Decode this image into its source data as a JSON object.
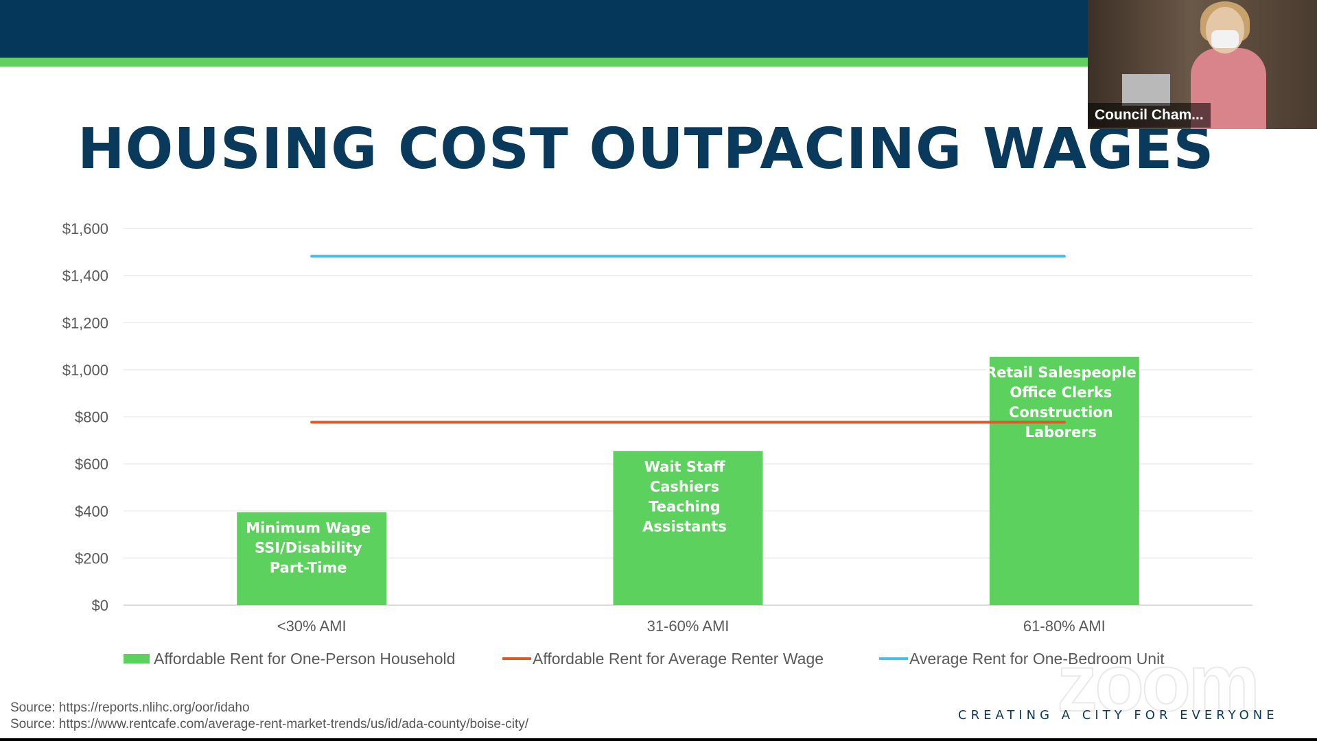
{
  "slide": {
    "title": "HOUSING COST OUTPACING WAGES",
    "sources": [
      "Source: https://reports.nlihc.org/oor/idaho",
      "Source: https://www.rentcafe.com/average-rent-market-trends/us/id/ada-county/boise-city/"
    ],
    "tagline": "CREATING A CITY FOR EVERYONE",
    "watermark": "zoom"
  },
  "video_tile": {
    "label": "Council Cham..."
  },
  "colors": {
    "header_band": "#04375a",
    "accent_green": "#61d05f",
    "title_text": "#093a5b",
    "bar_green": "#5dd15d",
    "wage_line": "#e2572a",
    "rent_line": "#45bfe8"
  },
  "chart_data": {
    "type": "bar",
    "title": "",
    "xlabel": "",
    "ylabel": "",
    "ylim": [
      0,
      1600
    ],
    "yticks": [
      "$0",
      "$200",
      "$400",
      "$600",
      "$800",
      "$1,000",
      "$1,200",
      "$1,400",
      "$1,600"
    ],
    "ytick_values": [
      0,
      200,
      400,
      600,
      800,
      1000,
      1200,
      1400,
      1600
    ],
    "grid": true,
    "legend_position": "bottom",
    "categories": [
      "<30% AMI",
      "31-60% AMI",
      "61-80% AMI"
    ],
    "series": [
      {
        "name": "Affordable Rent for One-Person Household",
        "kind": "bar",
        "color": "#5dd15d",
        "values": [
          395,
          655,
          1055
        ],
        "labels": [
          [
            "Minimum Wage",
            "SSI/Disability",
            "Part-Time"
          ],
          [
            "Wait Staff",
            "Cashiers",
            "Teaching",
            "Assistants"
          ],
          [
            "Retail Salespeople",
            "Office Clerks",
            "Construction",
            "Laborers"
          ]
        ]
      },
      {
        "name": "Affordable Rent for Average Renter Wage",
        "kind": "line",
        "color": "#e2572a",
        "values": [
          777,
          777,
          777
        ]
      },
      {
        "name": "Average Rent for One-Bedroom Unit",
        "kind": "line",
        "color": "#45bfe8",
        "values": [
          1482,
          1482,
          1482
        ]
      }
    ]
  }
}
